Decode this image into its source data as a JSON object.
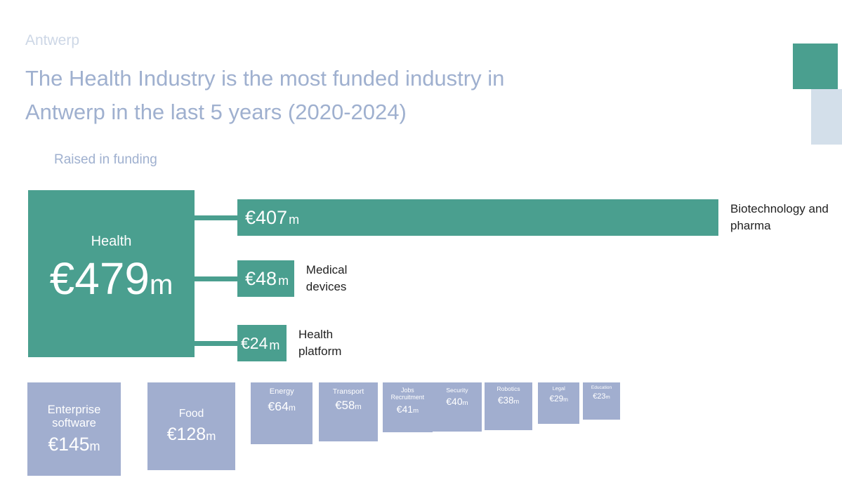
{
  "header": {
    "supertitle": "Antwerp",
    "title": "The Health Industry is the most funded industry in Antwerp in the last 5 years (2020-2024)",
    "subtitle": "Raised in funding"
  },
  "colors": {
    "health": "#4a9f8f",
    "other_industries": "#a1aecf",
    "title_text": "#9fb0cf",
    "accent_light": "#d3dfea"
  },
  "chart_data": {
    "type": "bar",
    "unit": "€m",
    "main": {
      "label": "Health",
      "value": 479,
      "display": "€479",
      "unit": "m"
    },
    "health_breakdown": [
      {
        "label": "Biotechnology and pharma",
        "value": 407,
        "display": "€407",
        "unit": "m"
      },
      {
        "label": "Medical devices",
        "value": 48,
        "display": "€48",
        "unit": "m"
      },
      {
        "label": "Health platform",
        "value": 24,
        "display": "€24",
        "unit": "m"
      }
    ],
    "other_industries": [
      {
        "label": "Enterprise software",
        "value": 145,
        "display": "€145",
        "unit": "m"
      },
      {
        "label": "Food",
        "value": 128,
        "display": "€128",
        "unit": "m"
      },
      {
        "label": "Energy",
        "value": 64,
        "display": "€64",
        "unit": "m"
      },
      {
        "label": "Transport",
        "value": 58,
        "display": "€58",
        "unit": "m"
      },
      {
        "label": "Jobs Recruitment",
        "value": 41,
        "display": "€41",
        "unit": "m"
      },
      {
        "label": "Security",
        "value": 40,
        "display": "€40",
        "unit": "m"
      },
      {
        "label": "Robotics",
        "value": 38,
        "display": "€38",
        "unit": "m"
      },
      {
        "label": "Legal",
        "value": 29,
        "display": "€29",
        "unit": "m"
      },
      {
        "label": "Education",
        "value": 23,
        "display": "€23",
        "unit": "m"
      }
    ]
  }
}
